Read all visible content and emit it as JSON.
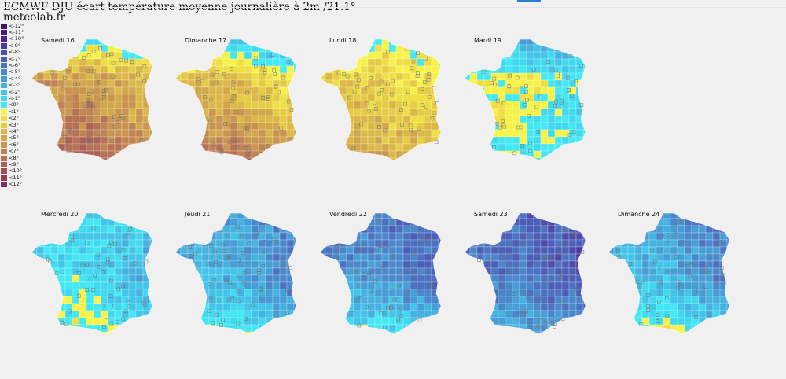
{
  "title": "ECMWF DJU écart température moyenne journalière à 2m /21.1°",
  "site": "meteolab.fr",
  "legend": [
    {
      "label": "<-12°",
      "color": "#3b1467"
    },
    {
      "label": "<-11°",
      "color": "#43197c"
    },
    {
      "label": "<-10°",
      "color": "#4a2590"
    },
    {
      "label": "<-9°",
      "color": "#4c3aa0"
    },
    {
      "label": "<-8°",
      "color": "#4d4cac"
    },
    {
      "label": "<-7°",
      "color": "#4d5eb8"
    },
    {
      "label": "<-6°",
      "color": "#4c72c2"
    },
    {
      "label": "<-5°",
      "color": "#4a88cc"
    },
    {
      "label": "<-4°",
      "color": "#479dd5"
    },
    {
      "label": "<-3°",
      "color": "#45b2df"
    },
    {
      "label": "<-2°",
      "color": "#42c5e8"
    },
    {
      "label": "<-1°",
      "color": "#40d9f0"
    },
    {
      "label": "<0°",
      "color": "#44e8f4"
    },
    {
      "label": "<1°",
      "color": "#f7f24a"
    },
    {
      "label": "<2°",
      "color": "#efdf45"
    },
    {
      "label": "<3°",
      "color": "#e6cc45"
    },
    {
      "label": "<4°",
      "color": "#dcb848"
    },
    {
      "label": "<5°",
      "color": "#d2a74c"
    },
    {
      "label": "<6°",
      "color": "#c99550"
    },
    {
      "label": "<7°",
      "color": "#c08353"
    },
    {
      "label": "<8°",
      "color": "#b67254"
    },
    {
      "label": "<9°",
      "color": "#ab6155"
    },
    {
      "label": "<10°",
      "color": "#a04f56"
    },
    {
      "label": "<11°",
      "color": "#943c58"
    },
    {
      "label": "<12°",
      "color": "#872a5a"
    }
  ],
  "days": [
    {
      "label": "Samedi 16",
      "base": 6,
      "south": 9,
      "east": 3,
      "north": -2
    },
    {
      "label": "Dimanche 17",
      "base": 4,
      "south": 8,
      "east": 1,
      "north": -3
    },
    {
      "label": "Lundi 18",
      "base": 3,
      "south": 5,
      "east": 1,
      "north": 0
    },
    {
      "label": "Mardi 19",
      "base": 1,
      "south": 0,
      "east": -1,
      "north": -4
    },
    {
      "label": "Mercredi 20",
      "base": -1,
      "south": 1,
      "east": -4,
      "north": -1
    },
    {
      "label": "Jeudi 21",
      "base": -3,
      "south": 0,
      "east": -7,
      "north": -4
    },
    {
      "label": "Vendredi 22",
      "base": -5,
      "south": 0,
      "east": -8,
      "north": -6
    },
    {
      "label": "Samedi 23",
      "base": -6,
      "south": -3,
      "east": -9,
      "north": -7
    },
    {
      "label": "Dimanche 24",
      "base": -3,
      "south": 1,
      "east": -7,
      "north": -5
    }
  ]
}
